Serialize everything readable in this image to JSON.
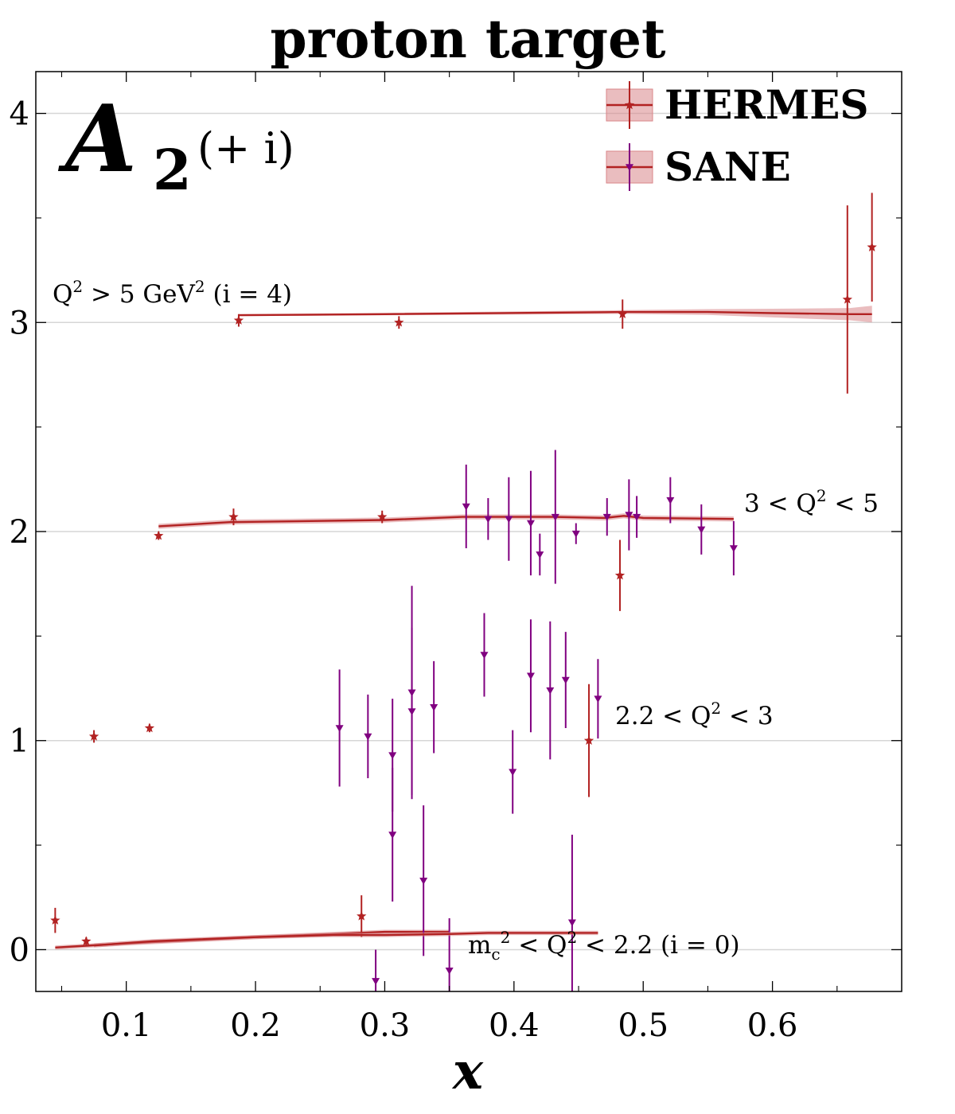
{
  "chart_data": {
    "type": "scatter",
    "title": "proton target",
    "xlabel": "x",
    "ylabel": "",
    "panel_label": {
      "main": "A",
      "sub": "2",
      "sup": "(+ i)"
    },
    "xlim": [
      0.03,
      0.7
    ],
    "ylim": [
      -0.2,
      4.2
    ],
    "x_ticks": [
      0.1,
      0.2,
      0.3,
      0.4,
      0.5,
      0.6
    ],
    "x_tick_labels": [
      "0.1",
      "0.2",
      "0.3",
      "0.4",
      "0.5",
      "0.6"
    ],
    "y_ticks": [
      0,
      1,
      2,
      3,
      4
    ],
    "y_tick_labels": [
      "0",
      "1",
      "2",
      "3",
      "4"
    ],
    "grid": "horizontal lines at integer offsets",
    "legend": {
      "placement": "top-right",
      "entries": [
        {
          "label": "HERMES",
          "marker": "star",
          "color": "#b22222"
        },
        {
          "label": "SANE",
          "marker": "triangle-down",
          "color": "#800080"
        }
      ]
    },
    "colors": {
      "hermes": "#b22222",
      "sane": "#800080",
      "band": "#d9868a"
    },
    "bins": [
      {
        "label": "m_c^2 < Q^2 < 2.2 (i = 0)",
        "label_parts": [
          "m",
          "c",
          "2",
          " < Q",
          "2",
          " < 2.2 (i = 0)"
        ],
        "offset": 0,
        "curve": [
          [
            0.045,
            0.01
          ],
          [
            0.1,
            0.03
          ],
          [
            0.2,
            0.06
          ],
          [
            0.28,
            0.08
          ],
          [
            0.3,
            0.085
          ],
          [
            0.35,
            0.085
          ]
        ],
        "band_halfwidth": 0.01,
        "hermes": [
          {
            "x": 0.045,
            "y": 0.14,
            "err": 0.06
          },
          {
            "x": 0.069,
            "y": 0.04,
            "err": 0.02
          },
          {
            "x": 0.282,
            "y": 0.16,
            "err": 0.1
          }
        ],
        "sane": [
          {
            "x": 0.293,
            "y": -0.15,
            "err": 0.15
          },
          {
            "x": 0.306,
            "y": 0.55,
            "err": 0.32
          },
          {
            "x": 0.33,
            "y": 0.33,
            "err": 0.36
          },
          {
            "x": 0.35,
            "y": -0.1,
            "err": 0.25
          },
          {
            "x": 0.445,
            "y": 0.13,
            "err": 0.42
          }
        ]
      },
      {
        "label": "2.2 < Q^2 < 3",
        "label_parts": [
          "2.2 < Q",
          "2",
          " < 3"
        ],
        "offset": 1,
        "curve": [
          [
            0.075,
            0.02
          ],
          [
            0.12,
            0.04
          ],
          [
            0.2,
            0.06
          ],
          [
            0.26,
            0.07
          ],
          [
            0.3,
            0.07
          ],
          [
            0.35,
            0.075
          ],
          [
            0.38,
            0.08
          ],
          [
            0.43,
            0.08
          ],
          [
            0.465,
            0.08
          ]
        ],
        "band_halfwidth": 0.01,
        "hermes": [
          {
            "x": 0.075,
            "y": 1.02,
            "err": 0.03
          },
          {
            "x": 0.118,
            "y": 1.06,
            "err": 0.02
          },
          {
            "x": 0.458,
            "y": 1.0,
            "err": 0.27
          }
        ],
        "sane": [
          {
            "x": 0.265,
            "y": 1.06,
            "err": 0.28
          },
          {
            "x": 0.287,
            "y": 1.02,
            "err": 0.2
          },
          {
            "x": 0.306,
            "y": 0.93,
            "err": 0.27
          },
          {
            "x": 0.321,
            "y": 1.23,
            "err": 0.51
          },
          {
            "x": 0.321,
            "y": 1.14,
            "err": 0.4
          },
          {
            "x": 0.338,
            "y": 1.16,
            "err": 0.22
          },
          {
            "x": 0.377,
            "y": 1.41,
            "err": 0.2
          },
          {
            "x": 0.399,
            "y": 0.85,
            "err": 0.2
          },
          {
            "x": 0.413,
            "y": 1.31,
            "err": 0.27
          },
          {
            "x": 0.428,
            "y": 1.24,
            "err": 0.33
          },
          {
            "x": 0.44,
            "y": 1.29,
            "err": 0.23
          },
          {
            "x": 0.465,
            "y": 1.2,
            "err": 0.19
          }
        ]
      },
      {
        "label": "3 < Q^2 < 5",
        "label_parts": [
          "3 < Q",
          "2",
          " < 5"
        ],
        "offset": 2,
        "curve": [
          [
            0.125,
            2.025
          ],
          [
            0.18,
            2.045
          ],
          [
            0.3,
            2.055
          ],
          [
            0.36,
            2.07
          ],
          [
            0.43,
            2.07
          ],
          [
            0.47,
            2.065
          ],
          [
            0.485,
            2.075
          ],
          [
            0.5,
            2.065
          ],
          [
            0.57,
            2.06
          ]
        ],
        "band_halfwidth": 0.012,
        "hermes": [
          {
            "x": 0.125,
            "y": 1.98,
            "err": 0.02
          },
          {
            "x": 0.183,
            "y": 2.07,
            "err": 0.04
          },
          {
            "x": 0.298,
            "y": 2.07,
            "err": 0.03
          },
          {
            "x": 0.482,
            "y": 1.79,
            "err": 0.17
          }
        ],
        "sane": [
          {
            "x": 0.363,
            "y": 2.12,
            "err": 0.2
          },
          {
            "x": 0.38,
            "y": 2.06,
            "err": 0.1
          },
          {
            "x": 0.396,
            "y": 2.06,
            "err": 0.2
          },
          {
            "x": 0.413,
            "y": 2.04,
            "err": 0.25
          },
          {
            "x": 0.42,
            "y": 1.89,
            "err": 0.1
          },
          {
            "x": 0.432,
            "y": 2.07,
            "err": 0.32
          },
          {
            "x": 0.448,
            "y": 1.99,
            "err": 0.05
          },
          {
            "x": 0.472,
            "y": 2.07,
            "err": 0.09
          },
          {
            "x": 0.489,
            "y": 2.08,
            "err": 0.17
          },
          {
            "x": 0.495,
            "y": 2.07,
            "err": 0.1
          },
          {
            "x": 0.521,
            "y": 2.15,
            "err": 0.11
          },
          {
            "x": 0.545,
            "y": 2.01,
            "err": 0.12
          },
          {
            "x": 0.57,
            "y": 1.92,
            "err": 0.13
          }
        ]
      },
      {
        "label": "Q^2 > 5 GeV^2 (i = 4)",
        "label_parts": [
          "Q",
          "2",
          " > 5 GeV",
          "2",
          " (i = 4)"
        ],
        "offset": 3,
        "curve": [
          [
            0.187,
            3.035
          ],
          [
            0.3,
            3.04
          ],
          [
            0.484,
            3.05
          ],
          [
            0.55,
            3.05
          ],
          [
            0.6,
            3.045
          ],
          [
            0.66,
            3.04
          ],
          [
            0.677,
            3.04
          ]
        ],
        "band_halfwidth_start": 0.005,
        "band_halfwidth_end": 0.04,
        "hermes": [
          {
            "x": 0.187,
            "y": 3.01,
            "err": 0.03
          },
          {
            "x": 0.311,
            "y": 3.0,
            "err": 0.03
          },
          {
            "x": 0.484,
            "y": 3.04,
            "err": 0.07
          },
          {
            "x": 0.658,
            "y": 3.11,
            "err": 0.45
          },
          {
            "x": 0.677,
            "y": 3.36,
            "err": 0.26
          }
        ],
        "sane": []
      }
    ]
  }
}
